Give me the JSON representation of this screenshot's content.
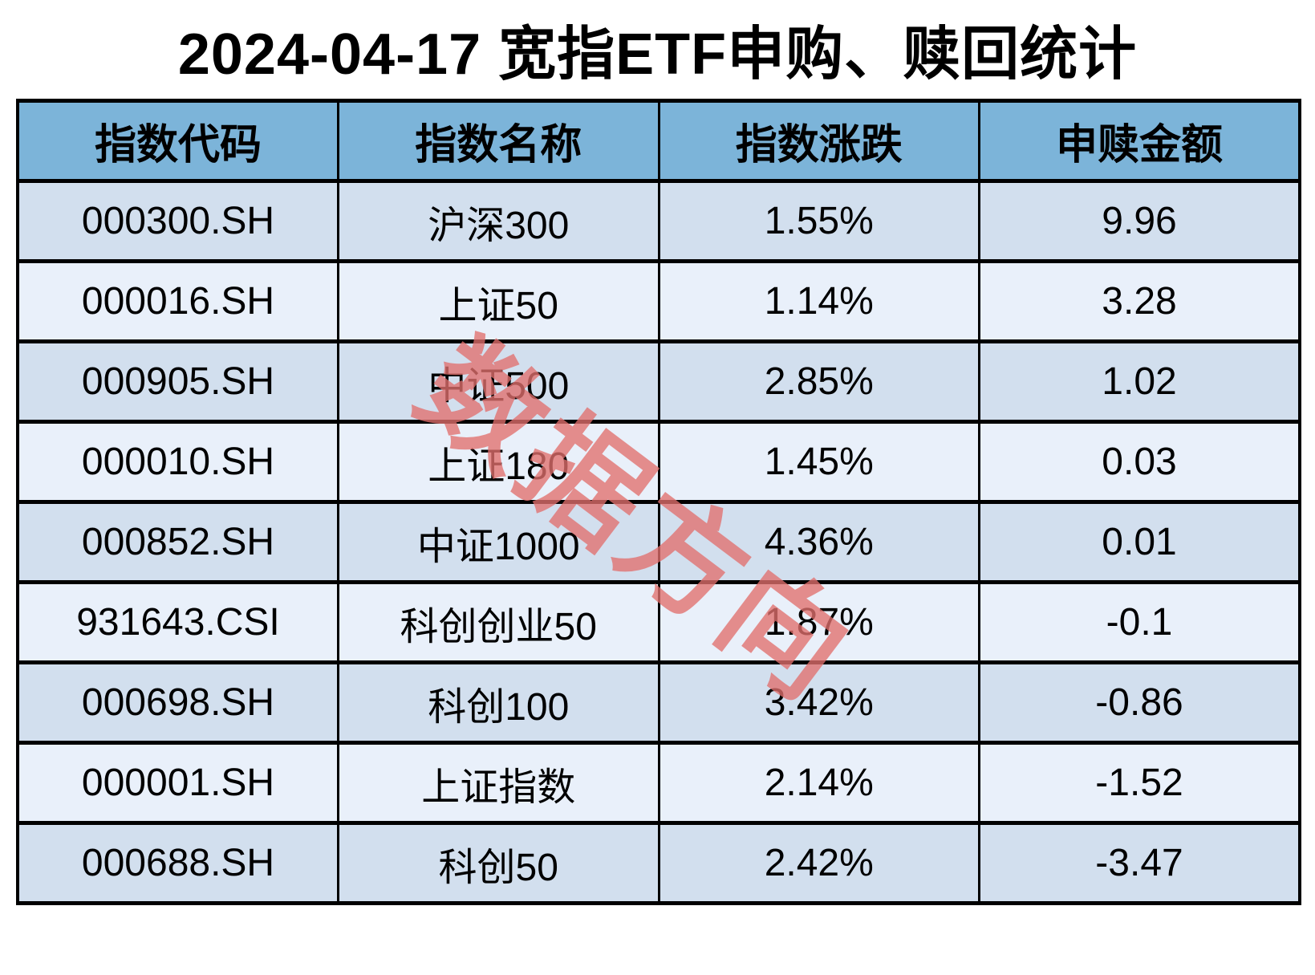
{
  "title": "2024-04-17 宽指ETF申购、赎回统计",
  "watermark": "数据方向",
  "table": {
    "columns": [
      "指数代码",
      "指数名称",
      "指数涨跌",
      "申赎金额"
    ],
    "rows": [
      {
        "code": "000300.SH",
        "name": "沪深300",
        "change": "1.55%",
        "amount": "9.96"
      },
      {
        "code": "000016.SH",
        "name": "上证50",
        "change": "1.14%",
        "amount": "3.28"
      },
      {
        "code": "000905.SH",
        "name": "中证500",
        "change": "2.85%",
        "amount": "1.02"
      },
      {
        "code": "000010.SH",
        "name": "上证180",
        "change": "1.45%",
        "amount": "0.03"
      },
      {
        "code": "000852.SH",
        "name": "中证1000",
        "change": "4.36%",
        "amount": "0.01"
      },
      {
        "code": "931643.CSI",
        "name": "科创创业50",
        "change": "1.87%",
        "amount": "-0.1"
      },
      {
        "code": "000698.SH",
        "name": "科创100",
        "change": "3.42%",
        "amount": "-0.86"
      },
      {
        "code": "000001.SH",
        "name": "上证指数",
        "change": "2.14%",
        "amount": "-1.52"
      },
      {
        "code": "000688.SH",
        "name": "科创50",
        "change": "2.42%",
        "amount": "-3.47"
      }
    ]
  },
  "colors": {
    "header_bg": "#7cb4d9",
    "row_odd_bg": "#d2dfee",
    "row_even_bg": "#e9f0fa",
    "border": "#000000",
    "watermark": "#e2706e",
    "title_text": "#000000",
    "cell_text": "#000000"
  },
  "chart_data": {
    "type": "table",
    "title": "2024-04-17 宽指ETF申购、赎回统计",
    "columns": [
      "指数代码",
      "指数名称",
      "指数涨跌",
      "申赎金额"
    ],
    "rows": [
      [
        "000300.SH",
        "沪深300",
        "1.55%",
        9.96
      ],
      [
        "000016.SH",
        "上证50",
        "1.14%",
        3.28
      ],
      [
        "000905.SH",
        "中证500",
        "2.85%",
        1.02
      ],
      [
        "000010.SH",
        "上证180",
        "1.45%",
        0.03
      ],
      [
        "000852.SH",
        "中证1000",
        "4.36%",
        0.01
      ],
      [
        "931643.CSI",
        "科创创业50",
        "1.87%",
        -0.1
      ],
      [
        "000698.SH",
        "科创100",
        "3.42%",
        -0.86
      ],
      [
        "000001.SH",
        "上证指数",
        "2.14%",
        -1.52
      ],
      [
        "000688.SH",
        "科创50",
        "2.42%",
        -3.47
      ]
    ],
    "notes": "申赎金额 values are index-change percentages paired with net subscription/redemption amounts; watermark overlay text 数据方向"
  }
}
